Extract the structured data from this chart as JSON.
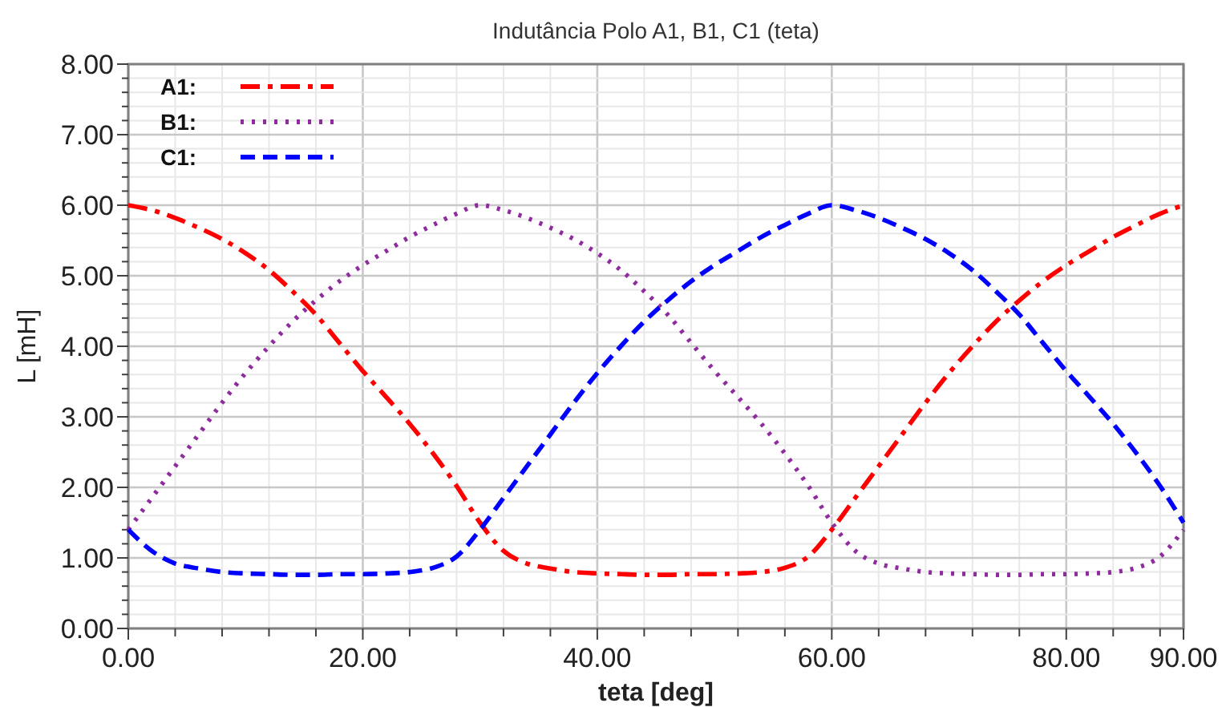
{
  "chart_data": {
    "type": "line",
    "title": "Indutância Polo A1, B1, C1 (teta)",
    "xlabel": "teta [deg]",
    "ylabel": "L [mH]",
    "x": [
      0,
      2,
      4,
      6,
      8,
      10,
      12,
      14,
      16,
      18,
      20,
      22,
      24,
      26,
      28,
      30,
      32,
      34,
      36,
      38,
      40,
      42,
      44,
      46,
      48,
      50,
      52,
      54,
      56,
      58,
      60,
      62,
      64,
      66,
      68,
      70,
      72,
      74,
      76,
      78,
      80,
      82,
      84,
      86,
      88,
      90
    ],
    "series": [
      {
        "name": "A1:",
        "color": "#ff0000",
        "line_style": "dashdot",
        "values": [
          6.0,
          5.93,
          5.82,
          5.68,
          5.52,
          5.32,
          5.08,
          4.78,
          4.45,
          4.05,
          3.65,
          3.28,
          2.9,
          2.48,
          2.02,
          1.5,
          1.1,
          0.92,
          0.85,
          0.8,
          0.78,
          0.77,
          0.76,
          0.76,
          0.77,
          0.77,
          0.78,
          0.8,
          0.86,
          1.02,
          1.4,
          1.85,
          2.3,
          2.75,
          3.2,
          3.62,
          4.0,
          4.35,
          4.65,
          4.92,
          5.15,
          5.35,
          5.55,
          5.72,
          5.88,
          6.0
        ]
      },
      {
        "name": "B1:",
        "color": "#8e2c9e",
        "line_style": "dotted",
        "values": [
          1.4,
          1.85,
          2.3,
          2.75,
          3.2,
          3.62,
          4.0,
          4.35,
          4.65,
          4.92,
          5.15,
          5.35,
          5.55,
          5.72,
          5.88,
          6.0,
          5.93,
          5.82,
          5.68,
          5.52,
          5.32,
          5.08,
          4.78,
          4.45,
          4.05,
          3.65,
          3.28,
          2.9,
          2.48,
          2.02,
          1.5,
          1.1,
          0.92,
          0.85,
          0.8,
          0.78,
          0.77,
          0.76,
          0.76,
          0.77,
          0.77,
          0.78,
          0.8,
          0.86,
          1.02,
          1.4
        ]
      },
      {
        "name": "C1:",
        "color": "#0000ff",
        "line_style": "dashed",
        "values": [
          1.4,
          1.1,
          0.92,
          0.85,
          0.8,
          0.78,
          0.77,
          0.76,
          0.76,
          0.77,
          0.77,
          0.78,
          0.8,
          0.86,
          1.02,
          1.4,
          1.85,
          2.3,
          2.75,
          3.2,
          3.62,
          4.0,
          4.35,
          4.65,
          4.92,
          5.15,
          5.35,
          5.55,
          5.72,
          5.88,
          6.0,
          5.93,
          5.82,
          5.68,
          5.52,
          5.32,
          5.08,
          4.78,
          4.45,
          4.05,
          3.65,
          3.28,
          2.9,
          2.48,
          2.02,
          1.5
        ]
      }
    ],
    "xlim": [
      0,
      90
    ],
    "xticks": [
      {
        "value": 0,
        "label": "0.00"
      },
      {
        "value": 4,
        "label": null
      },
      {
        "value": 8,
        "label": null
      },
      {
        "value": 12,
        "label": null
      },
      {
        "value": 16,
        "label": null
      },
      {
        "value": 20,
        "label": "20.00"
      },
      {
        "value": 24,
        "label": null
      },
      {
        "value": 28,
        "label": null
      },
      {
        "value": 32,
        "label": null
      },
      {
        "value": 36,
        "label": null
      },
      {
        "value": 40,
        "label": "40.00"
      },
      {
        "value": 44,
        "label": null
      },
      {
        "value": 48,
        "label": null
      },
      {
        "value": 52,
        "label": null
      },
      {
        "value": 56,
        "label": null
      },
      {
        "value": 60,
        "label": "60.00"
      },
      {
        "value": 64,
        "label": null
      },
      {
        "value": 68,
        "label": null
      },
      {
        "value": 72,
        "label": null
      },
      {
        "value": 76,
        "label": null
      },
      {
        "value": 80,
        "label": "80.00"
      },
      {
        "value": 84,
        "label": null
      },
      {
        "value": 88,
        "label": null
      },
      {
        "value": 90,
        "label": "90.00"
      }
    ],
    "ylim": [
      0,
      8
    ],
    "yticks": [
      {
        "value": 0,
        "label": "0.00"
      },
      {
        "value": 0.2,
        "label": null
      },
      {
        "value": 0.4,
        "label": null
      },
      {
        "value": 0.6,
        "label": null
      },
      {
        "value": 0.8,
        "label": null
      },
      {
        "value": 1,
        "label": "1.00"
      },
      {
        "value": 1.2,
        "label": null
      },
      {
        "value": 1.4,
        "label": null
      },
      {
        "value": 1.6,
        "label": null
      },
      {
        "value": 1.8,
        "label": null
      },
      {
        "value": 2,
        "label": "2.00"
      },
      {
        "value": 2.2,
        "label": null
      },
      {
        "value": 2.4,
        "label": null
      },
      {
        "value": 2.6,
        "label": null
      },
      {
        "value": 2.8,
        "label": null
      },
      {
        "value": 3,
        "label": "3.00"
      },
      {
        "value": 3.2,
        "label": null
      },
      {
        "value": 3.4,
        "label": null
      },
      {
        "value": 3.6,
        "label": null
      },
      {
        "value": 3.8,
        "label": null
      },
      {
        "value": 4,
        "label": "4.00"
      },
      {
        "value": 4.2,
        "label": null
      },
      {
        "value": 4.4,
        "label": null
      },
      {
        "value": 4.6,
        "label": null
      },
      {
        "value": 4.8,
        "label": null
      },
      {
        "value": 5,
        "label": "5.00"
      },
      {
        "value": 5.2,
        "label": null
      },
      {
        "value": 5.4,
        "label": null
      },
      {
        "value": 5.6,
        "label": null
      },
      {
        "value": 5.8,
        "label": null
      },
      {
        "value": 6,
        "label": "6.00"
      },
      {
        "value": 6.2,
        "label": null
      },
      {
        "value": 6.4,
        "label": null
      },
      {
        "value": 6.6,
        "label": null
      },
      {
        "value": 6.8,
        "label": null
      },
      {
        "value": 7,
        "label": "7.00"
      },
      {
        "value": 7.2,
        "label": null
      },
      {
        "value": 7.4,
        "label": null
      },
      {
        "value": 7.6,
        "label": null
      },
      {
        "value": 7.8,
        "label": null
      },
      {
        "value": 8,
        "label": "8.00"
      }
    ],
    "grid": true,
    "legend": "top left",
    "marker": "none"
  }
}
